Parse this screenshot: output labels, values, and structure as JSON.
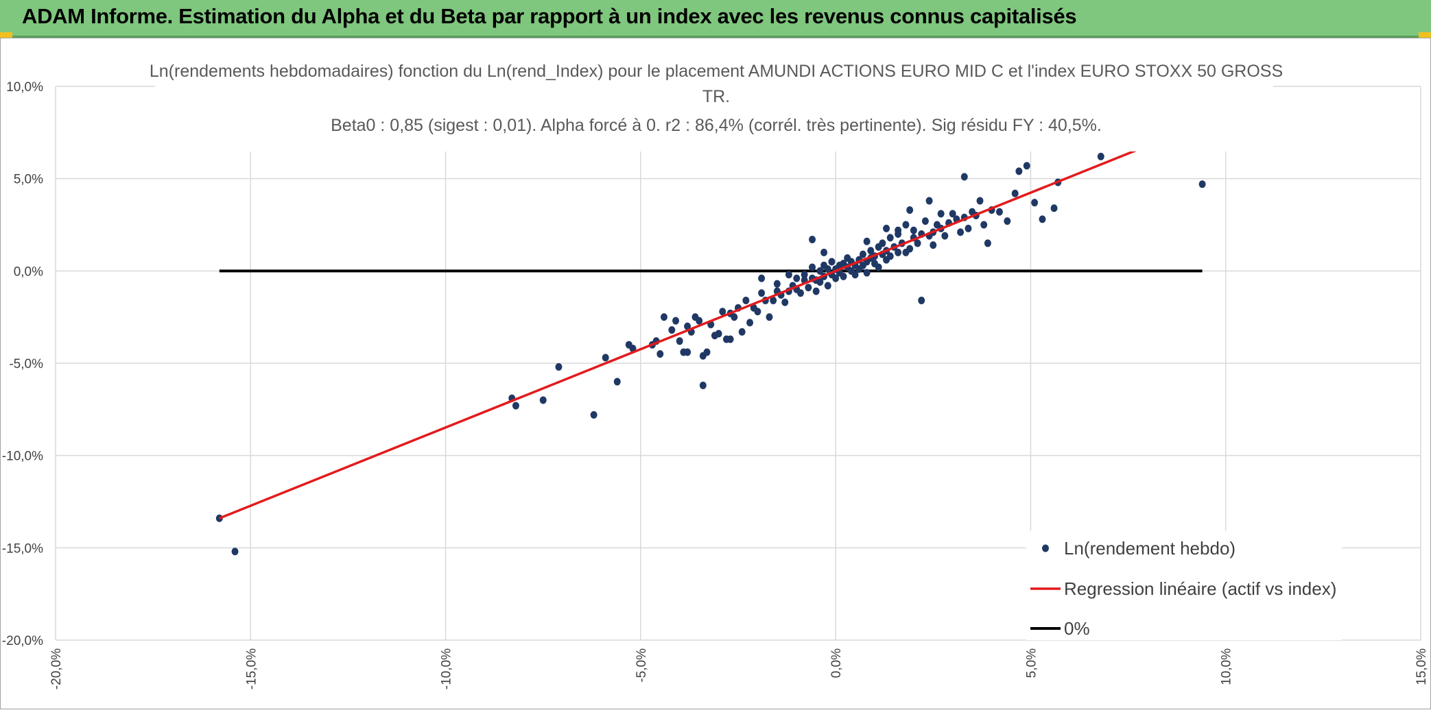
{
  "header": {
    "title": "ADAM Informe. Estimation du Alpha et du Beta par rapport à un index avec les revenus connus capitalisés"
  },
  "colors": {
    "header_bg": "#7fc67e",
    "points": "#203864",
    "regression": "#e31a1c",
    "zero_line": "#000000",
    "grid": "#d9d9d9"
  },
  "chart_data": {
    "type": "scatter",
    "title_lines": [
      "Ln(rendements hebdomadaires) fonction du Ln(rend_Index) pour le placement AMUNDI ACTIONS EURO MID C et l'index EURO STOXX 50 GROSS",
      "TR.",
      "Beta0 : 0,85 (sigest : 0,01). Alpha forcé à 0. r2 : 86,4% (corrél. très pertinente). Sig résidu FY : 40,5%."
    ],
    "xlim": [
      -0.2,
      0.15
    ],
    "ylim": [
      -0.2,
      0.1
    ],
    "x_ticks": [
      -0.2,
      -0.15,
      -0.1,
      -0.05,
      0.0,
      0.05,
      0.1,
      0.15
    ],
    "y_ticks": [
      -0.2,
      -0.15,
      -0.1,
      -0.05,
      0.0,
      0.05,
      0.1
    ],
    "x_tick_labels": [
      "-20,0%",
      "-15,0%",
      "-10,0%",
      "-5,0%",
      "0,0%",
      "5,0%",
      "10,0%",
      "15,0%"
    ],
    "y_tick_labels": [
      "-20,0%",
      "-15,0%",
      "-10,0%",
      "-5,0%",
      "0,0%",
      "5,0%",
      "10,0%"
    ],
    "grid": true,
    "legend_position": "bottom-right",
    "series": [
      {
        "name": "Ln(rendement hebdo)",
        "kind": "points",
        "color": "#203864",
        "points": [
          [
            -0.158,
            -0.134
          ],
          [
            -0.154,
            -0.152
          ],
          [
            -0.083,
            -0.069
          ],
          [
            -0.082,
            -0.073
          ],
          [
            -0.075,
            -0.07
          ],
          [
            -0.071,
            -0.052
          ],
          [
            -0.062,
            -0.078
          ],
          [
            -0.059,
            -0.047
          ],
          [
            -0.056,
            -0.06
          ],
          [
            -0.053,
            -0.04
          ],
          [
            -0.052,
            -0.042
          ],
          [
            -0.047,
            -0.04
          ],
          [
            -0.046,
            -0.038
          ],
          [
            -0.045,
            -0.045
          ],
          [
            -0.044,
            -0.025
          ],
          [
            -0.042,
            -0.032
          ],
          [
            -0.041,
            -0.027
          ],
          [
            -0.04,
            -0.038
          ],
          [
            -0.039,
            -0.044
          ],
          [
            -0.038,
            -0.044
          ],
          [
            -0.038,
            -0.03
          ],
          [
            -0.037,
            -0.033
          ],
          [
            -0.036,
            -0.025
          ],
          [
            -0.035,
            -0.027
          ],
          [
            -0.034,
            -0.046
          ],
          [
            -0.034,
            -0.062
          ],
          [
            -0.033,
            -0.044
          ],
          [
            -0.032,
            -0.029
          ],
          [
            -0.031,
            -0.035
          ],
          [
            -0.03,
            -0.034
          ],
          [
            -0.029,
            -0.022
          ],
          [
            -0.028,
            -0.037
          ],
          [
            -0.027,
            -0.023
          ],
          [
            -0.027,
            -0.037
          ],
          [
            -0.026,
            -0.025
          ],
          [
            -0.025,
            -0.02
          ],
          [
            -0.024,
            -0.033
          ],
          [
            -0.023,
            -0.016
          ],
          [
            -0.022,
            -0.028
          ],
          [
            -0.021,
            -0.02
          ],
          [
            -0.02,
            -0.022
          ],
          [
            -0.019,
            -0.012
          ],
          [
            -0.018,
            -0.016
          ],
          [
            -0.017,
            -0.025
          ],
          [
            -0.016,
            -0.016
          ],
          [
            -0.015,
            -0.011
          ],
          [
            -0.014,
            -0.013
          ],
          [
            -0.013,
            -0.017
          ],
          [
            -0.012,
            -0.011
          ],
          [
            -0.012,
            -0.002
          ],
          [
            -0.011,
            -0.008
          ],
          [
            -0.01,
            -0.01
          ],
          [
            -0.01,
            -0.004
          ],
          [
            -0.009,
            -0.012
          ],
          [
            -0.008,
            -0.005
          ],
          [
            -0.008,
            -0.002
          ],
          [
            -0.007,
            -0.009
          ],
          [
            -0.006,
            -0.004
          ],
          [
            -0.006,
            0.002
          ],
          [
            -0.005,
            -0.005
          ],
          [
            -0.005,
            -0.011
          ],
          [
            -0.004,
            0.0
          ],
          [
            -0.004,
            -0.006
          ],
          [
            -0.003,
            0.003
          ],
          [
            -0.003,
            -0.003
          ],
          [
            -0.002,
            -0.008
          ],
          [
            -0.002,
            0.001
          ],
          [
            -0.001,
            -0.002
          ],
          [
            -0.001,
            0.005
          ],
          [
            0.0,
            0.001
          ],
          [
            0.0,
            -0.004
          ],
          [
            0.001,
            0.003
          ],
          [
            0.001,
            -0.001
          ],
          [
            0.002,
            0.004
          ],
          [
            0.002,
            -0.003
          ],
          [
            0.003,
            0.002
          ],
          [
            0.003,
            0.007
          ],
          [
            0.004,
            0.0
          ],
          [
            0.004,
            0.005
          ],
          [
            0.005,
            0.003
          ],
          [
            0.005,
            -0.002
          ],
          [
            0.006,
            0.006
          ],
          [
            0.006,
            0.001
          ],
          [
            0.007,
            0.009
          ],
          [
            0.007,
            0.003
          ],
          [
            0.008,
            0.005
          ],
          [
            0.008,
            -0.001
          ],
          [
            0.009,
            0.007
          ],
          [
            0.009,
            0.011
          ],
          [
            0.01,
            0.004
          ],
          [
            0.01,
            0.008
          ],
          [
            0.011,
            0.013
          ],
          [
            0.011,
            0.002
          ],
          [
            0.012,
            0.009
          ],
          [
            0.012,
            0.015
          ],
          [
            0.013,
            0.006
          ],
          [
            0.013,
            0.011
          ],
          [
            0.014,
            0.018
          ],
          [
            0.014,
            0.008
          ],
          [
            0.015,
            0.013
          ],
          [
            0.016,
            0.01
          ],
          [
            0.016,
            0.02
          ],
          [
            0.017,
            0.015
          ],
          [
            0.018,
            0.01
          ],
          [
            0.018,
            0.025
          ],
          [
            0.019,
            0.012
          ],
          [
            0.02,
            0.018
          ],
          [
            0.02,
            0.022
          ],
          [
            0.021,
            0.015
          ],
          [
            0.022,
            -0.016
          ],
          [
            0.022,
            0.02
          ],
          [
            0.023,
            0.027
          ],
          [
            0.024,
            0.019
          ],
          [
            0.025,
            0.021
          ],
          [
            0.025,
            0.014
          ],
          [
            0.026,
            0.025
          ],
          [
            0.027,
            0.023
          ],
          [
            0.028,
            0.019
          ],
          [
            0.029,
            0.026
          ],
          [
            0.03,
            0.031
          ],
          [
            0.031,
            0.028
          ],
          [
            0.032,
            0.021
          ],
          [
            0.033,
            0.029
          ],
          [
            0.034,
            0.023
          ],
          [
            0.035,
            0.032
          ],
          [
            0.036,
            0.03
          ],
          [
            0.037,
            0.038
          ],
          [
            0.038,
            0.025
          ],
          [
            0.039,
            0.015
          ],
          [
            0.04,
            0.033
          ],
          [
            0.042,
            0.032
          ],
          [
            0.044,
            0.027
          ],
          [
            0.046,
            0.042
          ],
          [
            0.047,
            0.054
          ],
          [
            0.049,
            0.057
          ],
          [
            0.051,
            0.037
          ],
          [
            0.053,
            0.028
          ],
          [
            0.056,
            0.034
          ],
          [
            0.057,
            0.048
          ],
          [
            0.068,
            0.062
          ],
          [
            0.094,
            0.047
          ],
          [
            0.033,
            0.051
          ],
          [
            0.019,
            0.033
          ],
          [
            0.016,
            0.022
          ],
          [
            0.024,
            0.038
          ],
          [
            -0.006,
            0.017
          ],
          [
            -0.003,
            0.01
          ],
          [
            0.008,
            0.016
          ],
          [
            -0.015,
            -0.007
          ],
          [
            -0.019,
            -0.004
          ],
          [
            0.013,
            0.023
          ],
          [
            0.027,
            0.031
          ]
        ]
      },
      {
        "name": "Regression linéaire (actif vs index)",
        "kind": "line",
        "color": "#e31a1c",
        "x": [
          -0.158,
          0.079
        ],
        "y": [
          -0.134,
          0.067
        ]
      },
      {
        "name": "0%",
        "kind": "line",
        "color": "#000000",
        "x": [
          -0.158,
          0.094
        ],
        "y": [
          0.0,
          0.0
        ]
      }
    ]
  }
}
